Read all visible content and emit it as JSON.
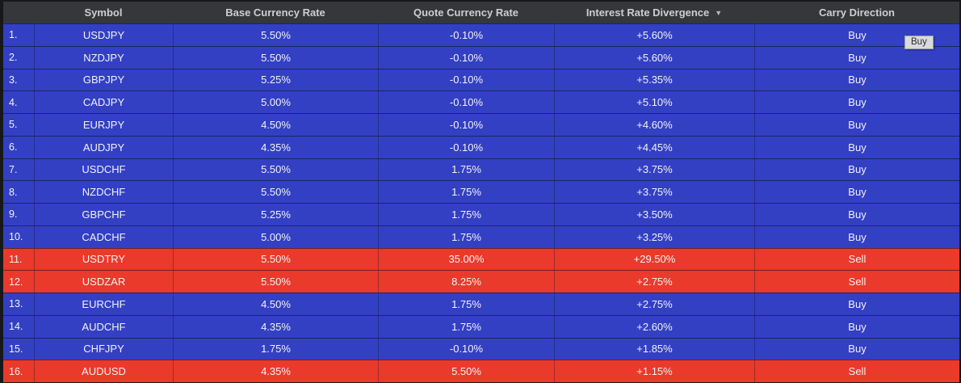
{
  "colors": {
    "buy_row": "#3340c4",
    "sell_row": "#e93a2c",
    "header_bg": "#36373b",
    "header_text": "#cdced1",
    "frame": "#17181a"
  },
  "tooltip": {
    "text": "Buy"
  },
  "table": {
    "header": {
      "number": "",
      "symbol": "Symbol",
      "base": "Base Currency Rate",
      "quote": "Quote Currency Rate",
      "divergence": "Interest Rate Divergence",
      "sort_icon": "▼",
      "carry": "Carry Direction"
    },
    "rows": [
      {
        "num": "1.",
        "symbol": "USDJPY",
        "base": "5.50%",
        "quote": "-0.10%",
        "divergence": "+5.60%",
        "carry": "Buy",
        "state": "buy"
      },
      {
        "num": "2.",
        "symbol": "NZDJPY",
        "base": "5.50%",
        "quote": "-0.10%",
        "divergence": "+5.60%",
        "carry": "Buy",
        "state": "buy"
      },
      {
        "num": "3.",
        "symbol": "GBPJPY",
        "base": "5.25%",
        "quote": "-0.10%",
        "divergence": "+5.35%",
        "carry": "Buy",
        "state": "buy"
      },
      {
        "num": "4.",
        "symbol": "CADJPY",
        "base": "5.00%",
        "quote": "-0.10%",
        "divergence": "+5.10%",
        "carry": "Buy",
        "state": "buy"
      },
      {
        "num": "5.",
        "symbol": "EURJPY",
        "base": "4.50%",
        "quote": "-0.10%",
        "divergence": "+4.60%",
        "carry": "Buy",
        "state": "buy"
      },
      {
        "num": "6.",
        "symbol": "AUDJPY",
        "base": "4.35%",
        "quote": "-0.10%",
        "divergence": "+4.45%",
        "carry": "Buy",
        "state": "buy"
      },
      {
        "num": "7.",
        "symbol": "USDCHF",
        "base": "5.50%",
        "quote": "1.75%",
        "divergence": "+3.75%",
        "carry": "Buy",
        "state": "buy"
      },
      {
        "num": "8.",
        "symbol": "NZDCHF",
        "base": "5.50%",
        "quote": "1.75%",
        "divergence": "+3.75%",
        "carry": "Buy",
        "state": "buy"
      },
      {
        "num": "9.",
        "symbol": "GBPCHF",
        "base": "5.25%",
        "quote": "1.75%",
        "divergence": "+3.50%",
        "carry": "Buy",
        "state": "buy"
      },
      {
        "num": "10.",
        "symbol": "CADCHF",
        "base": "5.00%",
        "quote": "1.75%",
        "divergence": "+3.25%",
        "carry": "Buy",
        "state": "buy"
      },
      {
        "num": "11.",
        "symbol": "USDTRY",
        "base": "5.50%",
        "quote": "35.00%",
        "divergence": "+29.50%",
        "carry": "Sell",
        "state": "sell"
      },
      {
        "num": "12.",
        "symbol": "USDZAR",
        "base": "5.50%",
        "quote": "8.25%",
        "divergence": "+2.75%",
        "carry": "Sell",
        "state": "sell"
      },
      {
        "num": "13.",
        "symbol": "EURCHF",
        "base": "4.50%",
        "quote": "1.75%",
        "divergence": "+2.75%",
        "carry": "Buy",
        "state": "buy"
      },
      {
        "num": "14.",
        "symbol": "AUDCHF",
        "base": "4.35%",
        "quote": "1.75%",
        "divergence": "+2.60%",
        "carry": "Buy",
        "state": "buy"
      },
      {
        "num": "15.",
        "symbol": "CHFJPY",
        "base": "1.75%",
        "quote": "-0.10%",
        "divergence": "+1.85%",
        "carry": "Buy",
        "state": "buy"
      },
      {
        "num": "16.",
        "symbol": "AUDUSD",
        "base": "4.35%",
        "quote": "5.50%",
        "divergence": "+1.15%",
        "carry": "Sell",
        "state": "sell"
      }
    ]
  }
}
